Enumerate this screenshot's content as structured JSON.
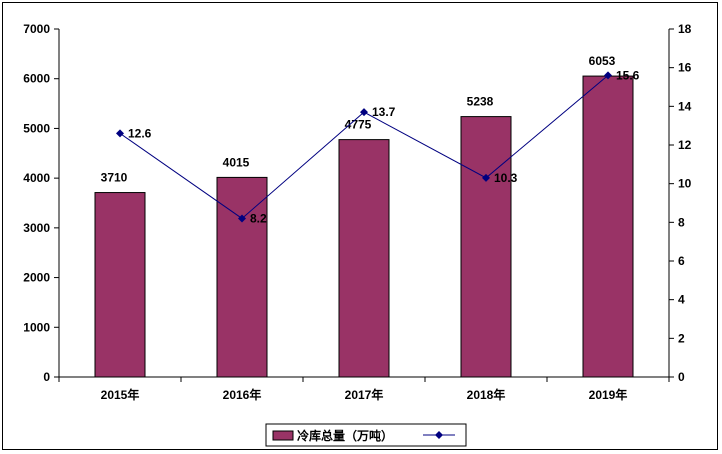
{
  "chart_data": {
    "type": "bar",
    "categories": [
      "2015年",
      "2016年",
      "2017年",
      "2018年",
      "2019年"
    ],
    "series": [
      {
        "name": "冷库总量（万吨）",
        "type": "bar",
        "axis": "left",
        "values": [
          3710,
          4015,
          4775,
          5238,
          6053
        ],
        "color": "#993366"
      },
      {
        "type": "line",
        "axis": "right",
        "values": [
          12.6,
          8.2,
          13.7,
          10.3,
          15.6
        ],
        "color": "#000080"
      }
    ],
    "ylim_left": [
      0,
      7000
    ],
    "yticks_left": [
      0,
      1000,
      2000,
      3000,
      4000,
      5000,
      6000,
      7000
    ],
    "ylim_right": [
      0,
      18
    ],
    "yticks_right": [
      0,
      2,
      4,
      6,
      8,
      10,
      12,
      14,
      16,
      18
    ],
    "grid": false,
    "legend_position": "bottom",
    "legend": {
      "bar_label": "冷库总量（万吨）"
    }
  }
}
